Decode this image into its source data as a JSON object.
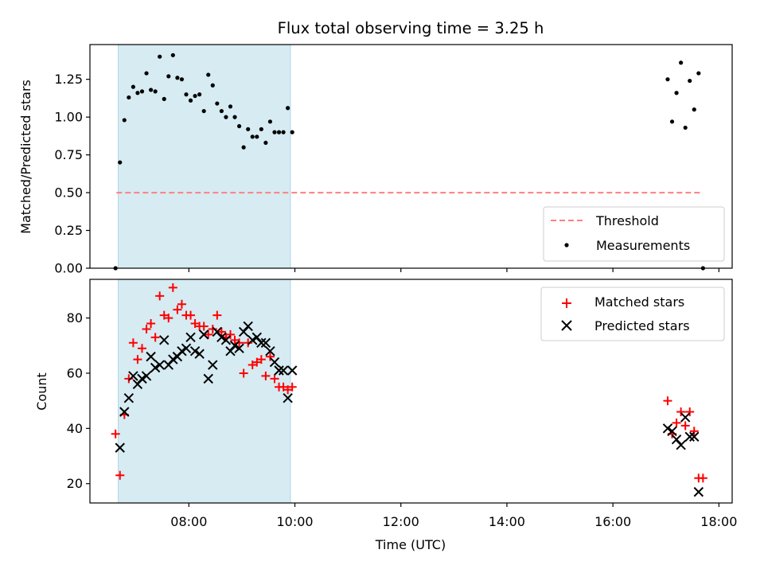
{
  "chart_data": [
    {
      "type": "scatter",
      "title": "Flux total observing time = 3.25 h",
      "xlabel": "",
      "ylabel": "Matched/Predicted stars",
      "xlim": [
        "06:08",
        "18:15"
      ],
      "ylim": [
        0,
        1.48
      ],
      "yticks": [
        "0.00",
        "0.25",
        "0.50",
        "0.75",
        "1.00",
        "1.25"
      ],
      "grid": false,
      "legend_position": "lower-right",
      "shaded_span": [
        "06:40",
        "09:55"
      ],
      "shaded_color": "#add8e6",
      "threshold": {
        "name": "Threshold",
        "y": 0.5,
        "x": [
          "06:38",
          "17:42"
        ],
        "color": "#ff7f7f",
        "style": "dashed"
      },
      "series": [
        {
          "name": "Measurements",
          "marker": "dot",
          "color": "#000000",
          "points": [
            [
              "06:37",
              0.0
            ],
            [
              "06:42",
              0.7
            ],
            [
              "06:47",
              0.98
            ],
            [
              "06:52",
              1.13
            ],
            [
              "06:57",
              1.2
            ],
            [
              "07:02",
              1.16
            ],
            [
              "07:07",
              1.17
            ],
            [
              "07:12",
              1.29
            ],
            [
              "07:17",
              1.18
            ],
            [
              "07:22",
              1.17
            ],
            [
              "07:27",
              1.4
            ],
            [
              "07:32",
              1.12
            ],
            [
              "07:37",
              1.27
            ],
            [
              "07:42",
              1.41
            ],
            [
              "07:47",
              1.26
            ],
            [
              "07:52",
              1.25
            ],
            [
              "07:57",
              1.15
            ],
            [
              "08:02",
              1.11
            ],
            [
              "08:07",
              1.14
            ],
            [
              "08:12",
              1.15
            ],
            [
              "08:17",
              1.04
            ],
            [
              "08:22",
              1.28
            ],
            [
              "08:27",
              1.21
            ],
            [
              "08:32",
              1.09
            ],
            [
              "08:37",
              1.04
            ],
            [
              "08:42",
              1.0
            ],
            [
              "08:47",
              1.07
            ],
            [
              "08:52",
              1.0
            ],
            [
              "08:57",
              0.94
            ],
            [
              "09:02",
              0.8
            ],
            [
              "09:07",
              0.92
            ],
            [
              "09:12",
              0.87
            ],
            [
              "09:17",
              0.87
            ],
            [
              "09:22",
              0.92
            ],
            [
              "09:27",
              0.83
            ],
            [
              "09:32",
              0.97
            ],
            [
              "09:37",
              0.9
            ],
            [
              "09:42",
              0.9
            ],
            [
              "09:47",
              0.9
            ],
            [
              "09:52",
              1.06
            ],
            [
              "09:57",
              0.9
            ],
            [
              "17:02",
              1.25
            ],
            [
              "17:07",
              0.97
            ],
            [
              "17:12",
              1.16
            ],
            [
              "17:17",
              1.36
            ],
            [
              "17:22",
              0.93
            ],
            [
              "17:27",
              1.24
            ],
            [
              "17:32",
              1.05
            ],
            [
              "17:37",
              1.29
            ],
            [
              "17:42",
              0.0
            ]
          ]
        }
      ]
    },
    {
      "type": "scatter",
      "title": "",
      "xlabel": "Time (UTC)",
      "ylabel": "Count",
      "xlim": [
        "06:08",
        "18:15"
      ],
      "ylim": [
        13,
        94
      ],
      "xticks": [
        "08:00",
        "10:00",
        "12:00",
        "14:00",
        "16:00",
        "18:00"
      ],
      "yticks": [
        "20",
        "40",
        "60",
        "80"
      ],
      "grid": false,
      "legend_position": "upper-right",
      "shaded_span": [
        "06:40",
        "09:55"
      ],
      "shaded_color": "#add8e6",
      "series": [
        {
          "name": "Matched stars",
          "marker": "plus",
          "color": "#ff0000",
          "points": [
            [
              "06:37",
              38
            ],
            [
              "06:42",
              23
            ],
            [
              "06:47",
              45
            ],
            [
              "06:52",
              58
            ],
            [
              "06:57",
              71
            ],
            [
              "07:02",
              65
            ],
            [
              "07:07",
              69
            ],
            [
              "07:12",
              76
            ],
            [
              "07:17",
              78
            ],
            [
              "07:22",
              73
            ],
            [
              "07:27",
              88
            ],
            [
              "07:32",
              81
            ],
            [
              "07:37",
              80
            ],
            [
              "07:42",
              91
            ],
            [
              "07:47",
              83
            ],
            [
              "07:52",
              85
            ],
            [
              "07:57",
              81
            ],
            [
              "08:02",
              81
            ],
            [
              "08:07",
              78
            ],
            [
              "08:12",
              77
            ],
            [
              "08:17",
              77
            ],
            [
              "08:22",
              74
            ],
            [
              "08:27",
              76
            ],
            [
              "08:32",
              81
            ],
            [
              "08:37",
              75
            ],
            [
              "08:42",
              73
            ],
            [
              "08:47",
              74
            ],
            [
              "08:52",
              72
            ],
            [
              "08:57",
              71
            ],
            [
              "09:02",
              60
            ],
            [
              "09:07",
              71
            ],
            [
              "09:12",
              63
            ],
            [
              "09:17",
              64
            ],
            [
              "09:22",
              65
            ],
            [
              "09:27",
              59
            ],
            [
              "09:32",
              66
            ],
            [
              "09:37",
              58
            ],
            [
              "09:42",
              55
            ],
            [
              "09:47",
              55
            ],
            [
              "09:52",
              54
            ],
            [
              "09:57",
              55
            ],
            [
              "17:02",
              50
            ],
            [
              "17:07",
              38
            ],
            [
              "17:12",
              42
            ],
            [
              "17:17",
              46
            ],
            [
              "17:22",
              41
            ],
            [
              "17:27",
              46
            ],
            [
              "17:32",
              39
            ],
            [
              "17:37",
              22
            ],
            [
              "17:42",
              22
            ]
          ]
        },
        {
          "name": "Predicted stars",
          "marker": "x",
          "color": "#000000",
          "points": [
            [
              "06:42",
              33
            ],
            [
              "06:47",
              46
            ],
            [
              "06:52",
              51
            ],
            [
              "06:57",
              59
            ],
            [
              "07:02",
              56
            ],
            [
              "07:07",
              58
            ],
            [
              "07:12",
              59
            ],
            [
              "07:17",
              66
            ],
            [
              "07:22",
              62
            ],
            [
              "07:27",
              63
            ],
            [
              "07:32",
              72
            ],
            [
              "07:37",
              63
            ],
            [
              "07:42",
              65
            ],
            [
              "07:47",
              66
            ],
            [
              "07:52",
              68
            ],
            [
              "07:57",
              69
            ],
            [
              "08:02",
              73
            ],
            [
              "08:07",
              68
            ],
            [
              "08:12",
              67
            ],
            [
              "08:17",
              74
            ],
            [
              "08:22",
              58
            ],
            [
              "08:27",
              63
            ],
            [
              "08:32",
              75
            ],
            [
              "08:37",
              73
            ],
            [
              "08:42",
              72
            ],
            [
              "08:47",
              68
            ],
            [
              "08:52",
              70
            ],
            [
              "08:57",
              69
            ],
            [
              "09:02",
              75
            ],
            [
              "09:07",
              77
            ],
            [
              "09:12",
              72
            ],
            [
              "09:17",
              73
            ],
            [
              "09:22",
              71
            ],
            [
              "09:27",
              71
            ],
            [
              "09:32",
              68
            ],
            [
              "09:37",
              64
            ],
            [
              "09:42",
              61
            ],
            [
              "09:47",
              61
            ],
            [
              "09:52",
              51
            ],
            [
              "09:57",
              61
            ],
            [
              "17:02",
              40
            ],
            [
              "17:07",
              39
            ],
            [
              "17:12",
              36
            ],
            [
              "17:17",
              34
            ],
            [
              "17:22",
              44
            ],
            [
              "17:27",
              37
            ],
            [
              "17:32",
              37
            ],
            [
              "17:37",
              17
            ]
          ]
        }
      ]
    }
  ]
}
